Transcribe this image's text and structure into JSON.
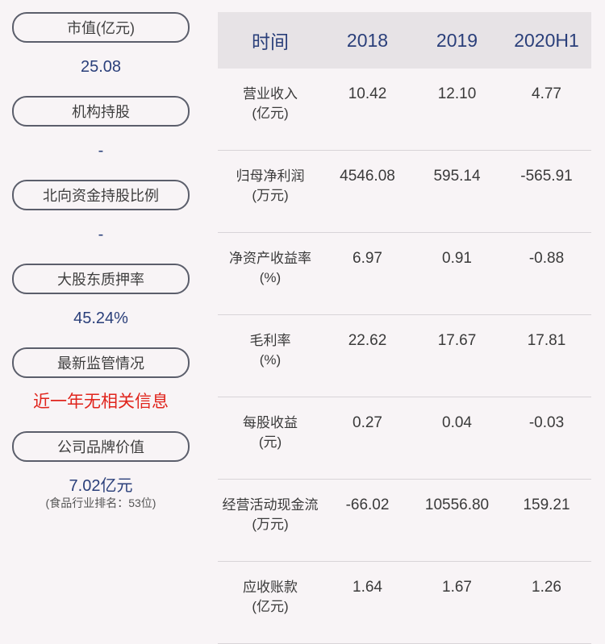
{
  "sidebar": {
    "market_value": {
      "label": "市值(亿元)",
      "value": "25.08"
    },
    "institution_holding": {
      "label": "机构持股",
      "value": "-"
    },
    "northbound_ratio": {
      "label": "北向资金持股比例",
      "value": "-"
    },
    "pledge_ratio": {
      "label": "大股东质押率",
      "value": "45.24%"
    },
    "regulation": {
      "label": "最新监管情况",
      "value": "近一年无相关信息"
    },
    "brand_value": {
      "label": "公司品牌价值",
      "value": "7.02亿元",
      "note": "(食品行业排名：53位)"
    }
  },
  "table": {
    "headers": [
      "时间",
      "2018",
      "2019",
      "2020H1"
    ],
    "rows": [
      {
        "label1": "营业收入",
        "label2": "(亿元)",
        "values": [
          "10.42",
          "12.10",
          "4.77"
        ]
      },
      {
        "label1": "归母净利润",
        "label2": "(万元)",
        "values": [
          "4546.08",
          "595.14",
          "-565.91"
        ]
      },
      {
        "label1": "净资产收益率",
        "label2": "(%)",
        "values": [
          "6.97",
          "0.91",
          "-0.88"
        ]
      },
      {
        "label1": "毛利率",
        "label2": "(%)",
        "values": [
          "22.62",
          "17.67",
          "17.81"
        ]
      },
      {
        "label1": "每股收益",
        "label2": "(元)",
        "values": [
          "0.27",
          "0.04",
          "-0.03"
        ]
      },
      {
        "label1": "经营活动现金流",
        "label2": "(万元)",
        "values": [
          "-66.02",
          "10556.80",
          "159.21"
        ]
      },
      {
        "label1": "应收账款",
        "label2": "(亿元)",
        "values": [
          "1.64",
          "1.67",
          "1.26"
        ]
      }
    ]
  },
  "colors": {
    "background": "#f8f4f6",
    "header_bg": "#e7e3e6",
    "value_blue": "#2a3f7a",
    "alert_red": "#e0241c",
    "pill_border": "#5b5e6b"
  }
}
